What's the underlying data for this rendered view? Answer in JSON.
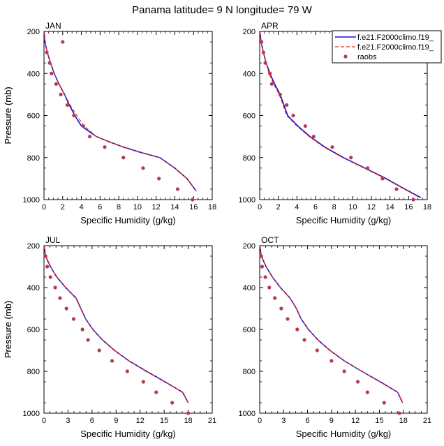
{
  "title": "Panama  latitude= 9 N longitude= 79 W",
  "colors": {
    "model_1": "#1010cc",
    "model_2": "#e8271f",
    "raobs": "#b23a5e"
  },
  "legend": {
    "placement": "top-right",
    "entries": [
      {
        "label": "f.e21.F2000climo.f19_",
        "color": "#1010cc",
        "style": "solid"
      },
      {
        "label": "f.e21.F2000climo.f19_",
        "color": "#e8271f",
        "style": "dashed"
      },
      {
        "label": "raobs",
        "color": "#b23a5e",
        "style": "dot"
      }
    ]
  },
  "chart_data": [
    {
      "type": "line",
      "panel": "JAN",
      "xlabel": "Specific Humidity (g/kg)",
      "ylabel": "Pressure (mb)",
      "xlim": [
        0,
        18
      ],
      "ylim": [
        1000,
        200
      ],
      "y_inverted": true,
      "grid": false,
      "x_ticks": [
        0,
        2,
        4,
        6,
        8,
        10,
        12,
        14,
        16,
        18
      ],
      "y_ticks": [
        200,
        400,
        600,
        800,
        1000
      ],
      "series": [
        {
          "key": "model_1",
          "style": "solid",
          "x": [
            0.02,
            0.1,
            0.35,
            0.7,
            1.1,
            1.6,
            2.2,
            2.7,
            3.3,
            4.0,
            5.6,
            7.0,
            8.5,
            10.3,
            12.4,
            14.0,
            15.3,
            16.3
          ],
          "y": [
            200,
            250,
            300,
            350,
            400,
            450,
            500,
            550,
            600,
            650,
            700,
            725,
            750,
            775,
            800,
            850,
            900,
            960
          ]
        },
        {
          "key": "model_2",
          "style": "dashed",
          "x": [
            0.02,
            0.1,
            0.35,
            0.7,
            1.1,
            1.6,
            2.2,
            2.8,
            3.5,
            4.3,
            5.6,
            7.0,
            8.5,
            10.3,
            12.4,
            14.0,
            15.3,
            16.3
          ],
          "y": [
            200,
            250,
            300,
            350,
            400,
            450,
            500,
            550,
            600,
            650,
            700,
            725,
            750,
            775,
            800,
            850,
            900,
            960
          ]
        },
        {
          "key": "raobs",
          "style": "dot",
          "x": [
            2.0,
            0.3,
            0.6,
            0.8,
            1.3,
            1.8,
            2.5,
            3.2,
            4.2,
            4.9,
            6.5,
            8.5,
            10.6,
            12.3,
            14.3,
            15.9
          ],
          "y": [
            250,
            300,
            350,
            400,
            450,
            500,
            550,
            600,
            650,
            700,
            750,
            800,
            850,
            900,
            950,
            1000
          ]
        }
      ]
    },
    {
      "type": "line",
      "panel": "APR",
      "xlabel": "Specific Humidity (g/kg)",
      "ylabel": "Pressure (mb)",
      "xlim": [
        0,
        18
      ],
      "ylim": [
        1000,
        200
      ],
      "y_inverted": true,
      "grid": false,
      "x_ticks": [
        0,
        2,
        4,
        6,
        8,
        10,
        12,
        14,
        16,
        18
      ],
      "y_ticks": [
        200,
        400,
        600,
        800,
        1000
      ],
      "series": [
        {
          "key": "model_1",
          "style": "solid",
          "x": [
            0.02,
            0.15,
            0.4,
            0.7,
            1.1,
            1.6,
            2.2,
            2.6,
            3.0,
            4.1,
            5.4,
            7.0,
            9.0,
            11.3,
            13.6,
            15.6,
            17.3
          ],
          "y": [
            200,
            250,
            300,
            350,
            400,
            450,
            500,
            550,
            600,
            650,
            700,
            750,
            800,
            850,
            900,
            950,
            990
          ]
        },
        {
          "key": "model_2",
          "style": "dashed",
          "x": [
            0.02,
            0.15,
            0.4,
            0.7,
            1.0,
            1.5,
            2.1,
            2.5,
            2.9,
            4.0,
            5.3,
            6.9,
            8.9,
            11.2,
            13.5,
            15.5,
            17.2
          ],
          "y": [
            200,
            250,
            300,
            350,
            400,
            450,
            500,
            550,
            600,
            650,
            700,
            750,
            800,
            850,
            900,
            950,
            990
          ]
        },
        {
          "key": "raobs",
          "style": "dot",
          "x": [
            0.2,
            0.4,
            0.6,
            1.1,
            1.3,
            2.2,
            2.9,
            3.6,
            4.9,
            5.8,
            7.8,
            9.8,
            11.6,
            13.2,
            14.7,
            16.5
          ],
          "y": [
            250,
            300,
            350,
            400,
            450,
            500,
            550,
            600,
            650,
            700,
            750,
            800,
            850,
            900,
            950,
            1000
          ]
        }
      ]
    },
    {
      "type": "line",
      "panel": "JUL",
      "xlabel": "Specific Humidity (g/kg)",
      "ylabel": "Pressure (mb)",
      "xlim": [
        0,
        21
      ],
      "ylim": [
        1000,
        200
      ],
      "y_inverted": true,
      "grid": false,
      "x_ticks": [
        0,
        3,
        6,
        9,
        12,
        15,
        18,
        21
      ],
      "y_ticks": [
        200,
        400,
        600,
        800,
        1000
      ],
      "series": [
        {
          "key": "model_1",
          "style": "solid",
          "x": [
            0.02,
            0.2,
            0.8,
            1.6,
            2.7,
            4.0,
            4.6,
            5.2,
            6.1,
            7.3,
            8.8,
            10.6,
            12.8,
            15.1,
            17.3,
            18.0
          ],
          "y": [
            200,
            250,
            300,
            350,
            400,
            450,
            500,
            550,
            600,
            650,
            700,
            750,
            800,
            850,
            900,
            950
          ]
        },
        {
          "key": "model_2",
          "style": "dashed",
          "x": [
            0.02,
            0.2,
            0.8,
            1.6,
            2.7,
            4.0,
            4.6,
            5.2,
            6.1,
            7.3,
            8.8,
            10.6,
            12.8,
            15.1,
            17.3,
            18.0
          ],
          "y": [
            200,
            250,
            300,
            350,
            400,
            450,
            500,
            550,
            600,
            650,
            700,
            750,
            800,
            850,
            900,
            950
          ]
        },
        {
          "key": "raobs",
          "style": "dot",
          "x": [
            0.2,
            0.4,
            0.8,
            1.4,
            2.0,
            2.8,
            3.7,
            4.8,
            5.5,
            6.9,
            8.5,
            10.4,
            12.4,
            14.0,
            16.0,
            18.0
          ],
          "y": [
            250,
            300,
            350,
            400,
            450,
            500,
            550,
            600,
            650,
            700,
            750,
            800,
            850,
            900,
            950,
            1000
          ]
        }
      ]
    },
    {
      "type": "line",
      "panel": "OCT",
      "xlabel": "Specific Humidity (g/kg)",
      "ylabel": "Pressure (mb)",
      "xlim": [
        0,
        21
      ],
      "ylim": [
        1000,
        200
      ],
      "y_inverted": true,
      "grid": false,
      "x_ticks": [
        0,
        3,
        6,
        9,
        12,
        15,
        18,
        21
      ],
      "y_ticks": [
        200,
        400,
        600,
        800,
        1000
      ],
      "series": [
        {
          "key": "model_1",
          "style": "solid",
          "x": [
            0.02,
            0.2,
            0.8,
            1.6,
            2.6,
            3.8,
            4.6,
            5.2,
            6.1,
            7.3,
            8.8,
            10.6,
            12.8,
            15.1,
            17.3,
            17.9
          ],
          "y": [
            200,
            250,
            300,
            350,
            400,
            450,
            500,
            550,
            600,
            650,
            700,
            750,
            800,
            850,
            900,
            950
          ]
        },
        {
          "key": "model_2",
          "style": "dashed",
          "x": [
            0.02,
            0.2,
            0.8,
            1.6,
            2.6,
            3.8,
            4.6,
            5.2,
            6.1,
            7.3,
            8.8,
            10.6,
            12.8,
            15.1,
            17.3,
            17.9
          ],
          "y": [
            200,
            250,
            300,
            350,
            400,
            450,
            500,
            550,
            600,
            650,
            700,
            750,
            800,
            850,
            900,
            950
          ]
        },
        {
          "key": "raobs",
          "style": "dot",
          "x": [
            0.2,
            0.3,
            0.7,
            1.2,
            1.9,
            2.7,
            3.5,
            4.7,
            5.6,
            7.2,
            9.0,
            10.6,
            12.3,
            13.5,
            15.6,
            17.5
          ],
          "y": [
            250,
            300,
            350,
            400,
            450,
            500,
            550,
            600,
            650,
            700,
            750,
            800,
            850,
            900,
            950,
            1000
          ]
        }
      ]
    }
  ]
}
